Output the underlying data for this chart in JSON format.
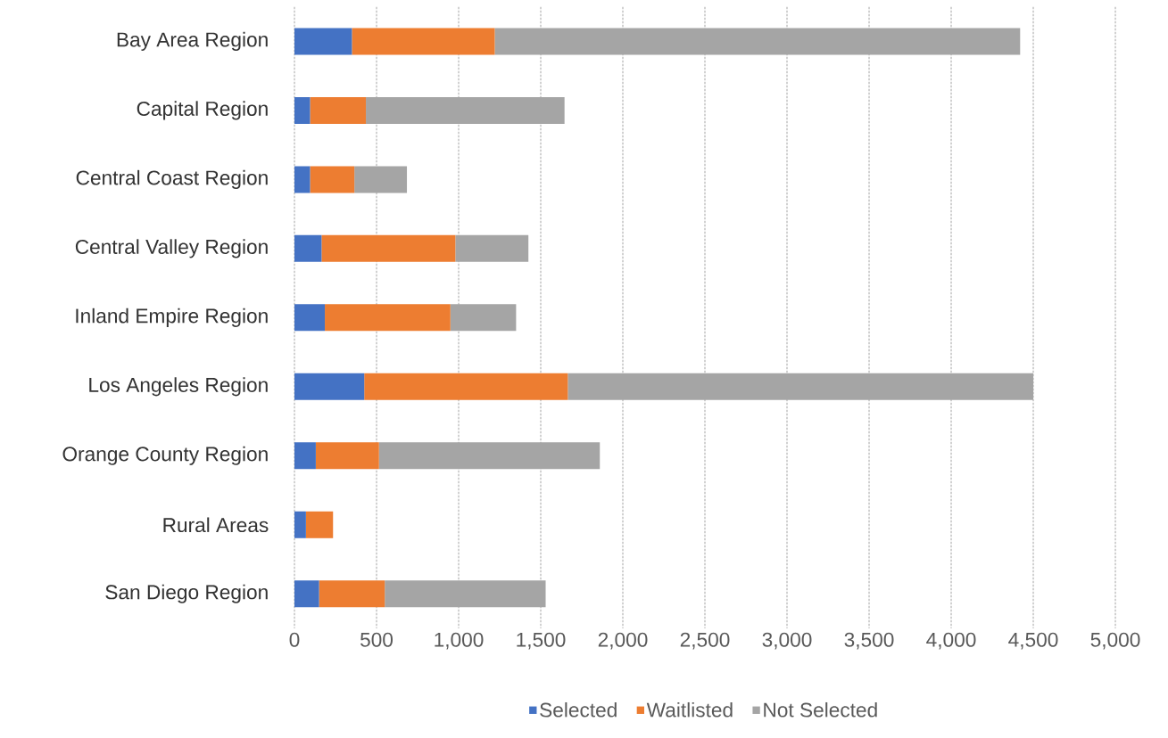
{
  "chart_data": {
    "type": "bar",
    "orientation": "horizontal",
    "stacked": true,
    "categories": [
      "Bay Area Region",
      "Capital Region",
      "Central Coast Region",
      "Central Valley Region",
      "Inland Empire Region",
      "Los Angeles Region",
      "Orange County Region",
      "Rural Areas",
      "San Diego Region"
    ],
    "series": [
      {
        "name": "Selected",
        "color": "#4472c4",
        "values": [
          350,
          95,
          95,
          165,
          185,
          425,
          130,
          70,
          150
        ]
      },
      {
        "name": "Waitlisted",
        "color": "#ed7d31",
        "values": [
          870,
          340,
          270,
          815,
          765,
          1240,
          385,
          165,
          400
        ]
      },
      {
        "name": "Not Selected",
        "color": "#a5a5a5",
        "values": [
          3200,
          1210,
          320,
          445,
          400,
          2835,
          1345,
          0,
          980
        ]
      }
    ],
    "xlim": [
      0,
      5000
    ],
    "xticks": [
      0,
      500,
      {
        "value": 1000,
        "label": "1,000"
      },
      {
        "value": 1500,
        "label": "1,500"
      },
      {
        "value": 2000,
        "label": "2,000"
      },
      {
        "value": 2500,
        "label": "2,500"
      },
      {
        "value": 3000,
        "label": "3,000"
      },
      {
        "value": 3500,
        "label": "3,500"
      },
      {
        "value": 4000,
        "label": "4,000"
      },
      {
        "value": 4500,
        "label": "4,500"
      },
      {
        "value": 5000,
        "label": "5,000"
      }
    ],
    "grid": "x",
    "legend": "bottom"
  }
}
